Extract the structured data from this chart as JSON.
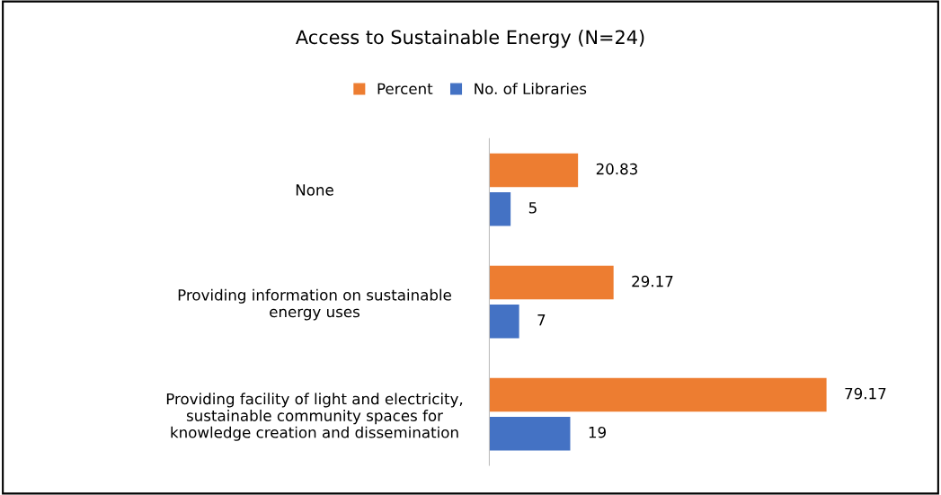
{
  "chart_data": {
    "type": "bar",
    "orientation": "horizontal",
    "title": "Access to Sustainable Energy (N=24)",
    "categories": [
      "None",
      "Providing information on sustainable\nenergy uses",
      "Providing facility of light and electricity,\nsustainable community spaces for\nknowledge creation and dissemination"
    ],
    "series": [
      {
        "name": "Percent",
        "color": "#ed7d31",
        "values": [
          20.83,
          29.17,
          79.17
        ]
      },
      {
        "name": "No. of Libraries",
        "color": "#4472c4",
        "values": [
          5,
          7,
          19
        ]
      }
    ],
    "data_labels": true,
    "legend": "top",
    "tick_labels": "y",
    "grid": false
  }
}
